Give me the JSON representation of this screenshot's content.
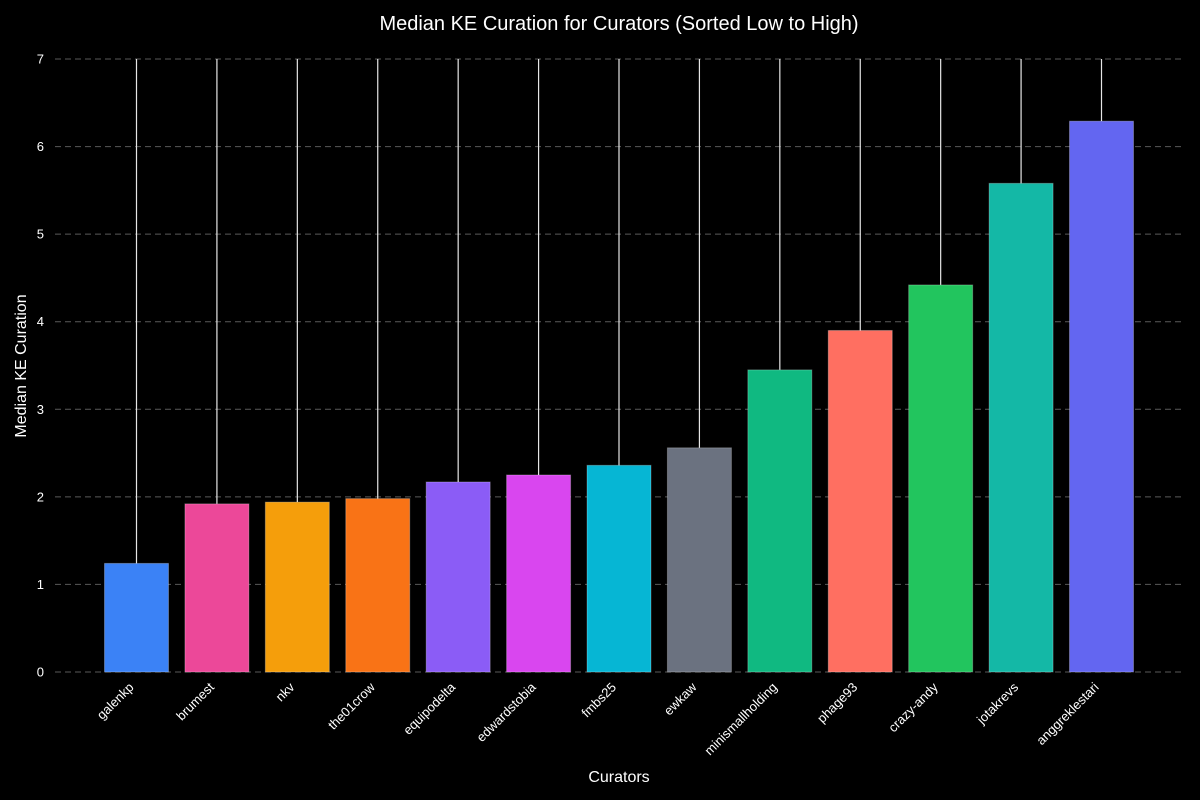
{
  "chart_data": {
    "type": "bar",
    "title": "Median KE Curation for Curators (Sorted Low to High)",
    "xlabel": "Curators",
    "ylabel": "Median KE Curation",
    "ylim": [
      0,
      7
    ],
    "yticks": [
      0,
      1,
      2,
      3,
      4,
      5,
      6,
      7
    ],
    "grid": "horizontal dashed",
    "categories": [
      "galenkp",
      "brumest",
      "nkv",
      "the01crow",
      "equipodelta",
      "edwardstobia",
      "fmbs25",
      "ewkaw",
      "minismallholding",
      "phage93",
      "crazy-andy",
      "jotakrevs",
      "anggreklestari"
    ],
    "values": [
      1.24,
      1.92,
      1.94,
      1.98,
      2.17,
      2.25,
      2.36,
      2.56,
      3.45,
      3.9,
      4.42,
      5.58,
      6.29
    ],
    "colors": [
      "#3b82f6",
      "#ec4899",
      "#f59e0b",
      "#f97316",
      "#8b5cf6",
      "#d946ef",
      "#06b6d4",
      "#6b7280",
      "#10b981",
      "#ff6f61",
      "#22c55e",
      "#14b8a6",
      "#6366f1"
    ],
    "stem_top_value": 7
  }
}
